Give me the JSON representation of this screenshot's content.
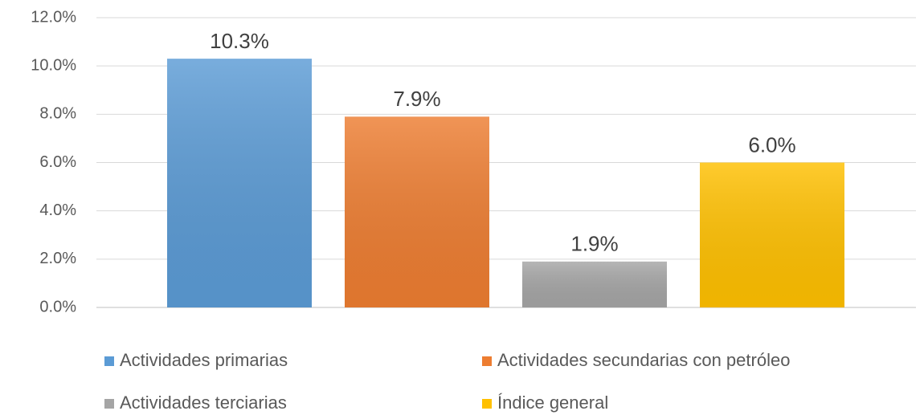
{
  "chart_data": {
    "type": "bar",
    "series": [
      {
        "name": "Actividades primarias",
        "color": "#5b9bd5",
        "values": [
          10.3
        ],
        "value_labels": [
          "10.3%"
        ]
      },
      {
        "name": "Actividades secundarias con petróleo",
        "color": "#ed7d31",
        "values": [
          7.9
        ],
        "value_labels": [
          "7.9%"
        ]
      },
      {
        "name": "Actividades terciarias",
        "color": "#a5a5a5",
        "values": [
          1.9
        ],
        "value_labels": [
          "1.9%"
        ]
      },
      {
        "name": "Índice general",
        "color": "#ffc000",
        "values": [
          6.0
        ],
        "value_labels": [
          "6.0%"
        ]
      }
    ],
    "ylim": [
      0,
      12
    ],
    "yticks": [
      {
        "value": 0,
        "label": "0.0%"
      },
      {
        "value": 2,
        "label": "2.0%"
      },
      {
        "value": 4,
        "label": "4.0%"
      },
      {
        "value": 6,
        "label": "6.0%"
      },
      {
        "value": 8,
        "label": "8.0%"
      },
      {
        "value": 10,
        "label": "10.0%"
      },
      {
        "value": 12,
        "label": "12.0%"
      }
    ],
    "grid": true,
    "legend": "bottom"
  }
}
